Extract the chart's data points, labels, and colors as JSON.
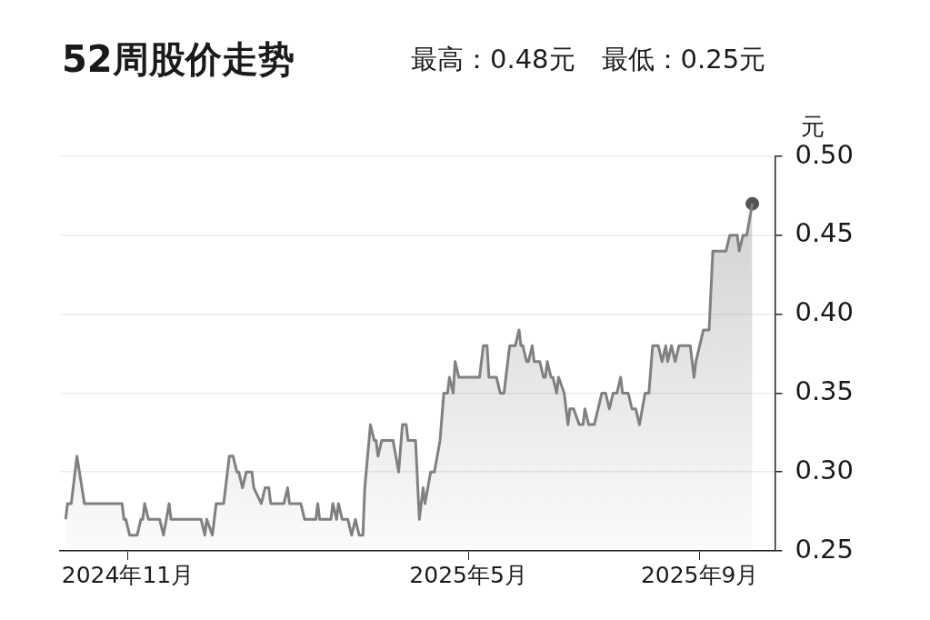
{
  "chart_data": {
    "type": "area",
    "title": "52周股价走势",
    "subtitle": "最高：0.48元　最低：0.25元",
    "ylabel": "元",
    "xlim": [
      "2024-09-26",
      "2025-10-11"
    ],
    "xticks": [
      {
        "value": "2024-11",
        "label": "2024年11月"
      },
      {
        "value": "2025-05",
        "label": "2025年5月"
      },
      {
        "value": "2025-09",
        "label": "2025年9月"
      }
    ],
    "ylim": [
      0.25,
      0.5
    ],
    "yticks": [
      {
        "value": 0.25,
        "label": "0.25"
      },
      {
        "value": 0.3,
        "label": "0.30"
      },
      {
        "value": 0.35,
        "label": "0.35"
      },
      {
        "value": 0.4,
        "label": "0.40"
      },
      {
        "value": 0.45,
        "label": "0.45"
      },
      {
        "value": 0.5,
        "label": "0.50"
      }
    ],
    "grid": "y",
    "series": [
      {
        "color": "#808080",
        "x": [
          "2024-09-29",
          "2024-09-30",
          "2024-10-02",
          "2024-10-05",
          "2024-10-09",
          "2024-10-29",
          "2024-10-30",
          "2024-10-31",
          "2024-11-02",
          "2024-11-06",
          "2024-11-08",
          "2024-11-09",
          "2024-11-10",
          "2024-11-12",
          "2024-11-18",
          "2024-11-20",
          "2024-11-23",
          "2024-11-24",
          "2024-12-10",
          "2024-12-12",
          "2024-12-13",
          "2024-12-16",
          "2024-12-18",
          "2024-12-22",
          "2024-12-25",
          "2024-12-27",
          "2024-12-29",
          "2024-12-30",
          "2025-01-01",
          "2025-01-03",
          "2025-01-06",
          "2025-01-07",
          "2025-01-11",
          "2025-01-13",
          "2025-01-15",
          "2025-01-16",
          "2025-01-23",
          "2025-01-25",
          "2025-01-26",
          "2025-02-01",
          "2025-02-03",
          "2025-02-09",
          "2025-02-10",
          "2025-02-11",
          "2025-02-17",
          "2025-02-18",
          "2025-02-20",
          "2025-02-21",
          "2025-02-23",
          "2025-02-26",
          "2025-02-28",
          "2025-03-02",
          "2025-03-04",
          "2025-03-06",
          "2025-03-07",
          "2025-03-10",
          "2025-03-12",
          "2025-03-13",
          "2025-03-14",
          "2025-03-16",
          "2025-03-22",
          "2025-03-25",
          "2025-03-27",
          "2025-03-29",
          "2025-03-30",
          "2025-04-03",
          "2025-04-05",
          "2025-04-07",
          "2025-04-08",
          "2025-04-11",
          "2025-04-13",
          "2025-04-16",
          "2025-04-18",
          "2025-04-20",
          "2025-04-21",
          "2025-04-23",
          "2025-04-24",
          "2025-04-26",
          "2025-05-07",
          "2025-05-09",
          "2025-05-11",
          "2025-05-12",
          "2025-05-16",
          "2025-05-18",
          "2025-05-20",
          "2025-05-21",
          "2025-05-23",
          "2025-05-26",
          "2025-05-28",
          "2025-05-29",
          "2025-05-30",
          "2025-06-01",
          "2025-06-02",
          "2025-06-04",
          "2025-06-05",
          "2025-06-08",
          "2025-06-10",
          "2025-06-11",
          "2025-06-12",
          "2025-06-14",
          "2025-06-15",
          "2025-06-17",
          "2025-06-18",
          "2025-06-21",
          "2025-06-23",
          "2025-06-24",
          "2025-06-26",
          "2025-06-29",
          "2025-07-01",
          "2025-07-02",
          "2025-07-04",
          "2025-07-07",
          "2025-07-11",
          "2025-07-13",
          "2025-07-15",
          "2025-07-17",
          "2025-07-19",
          "2025-07-21",
          "2025-07-22",
          "2025-07-25",
          "2025-07-27",
          "2025-07-29",
          "2025-07-31",
          "2025-08-03",
          "2025-08-05",
          "2025-08-07",
          "2025-08-10",
          "2025-08-12",
          "2025-08-14",
          "2025-08-15",
          "2025-08-17",
          "2025-08-19",
          "2025-08-21",
          "2025-08-27",
          "2025-08-29",
          "2025-08-30",
          "2025-09-03",
          "2025-09-06",
          "2025-09-08",
          "2025-09-15",
          "2025-09-17",
          "2025-09-21",
          "2025-09-22",
          "2025-09-24",
          "2025-09-26",
          "2025-09-29"
        ],
        "values": [
          0.27,
          0.28,
          0.28,
          0.31,
          0.28,
          0.28,
          0.27,
          0.27,
          0.26,
          0.26,
          0.27,
          0.27,
          0.28,
          0.27,
          0.27,
          0.26,
          0.28,
          0.27,
          0.27,
          0.26,
          0.27,
          0.26,
          0.28,
          0.28,
          0.31,
          0.31,
          0.3,
          0.3,
          0.29,
          0.3,
          0.3,
          0.29,
          0.28,
          0.29,
          0.29,
          0.28,
          0.28,
          0.29,
          0.28,
          0.28,
          0.27,
          0.27,
          0.28,
          0.27,
          0.27,
          0.28,
          0.27,
          0.28,
          0.27,
          0.27,
          0.26,
          0.27,
          0.26,
          0.26,
          0.29,
          0.33,
          0.32,
          0.32,
          0.31,
          0.32,
          0.32,
          0.3,
          0.33,
          0.33,
          0.32,
          0.32,
          0.27,
          0.29,
          0.28,
          0.3,
          0.3,
          0.32,
          0.35,
          0.35,
          0.36,
          0.35,
          0.37,
          0.36,
          0.36,
          0.38,
          0.38,
          0.36,
          0.36,
          0.35,
          0.35,
          0.36,
          0.38,
          0.38,
          0.39,
          0.38,
          0.38,
          0.37,
          0.37,
          0.38,
          0.37,
          0.37,
          0.36,
          0.36,
          0.37,
          0.36,
          0.36,
          0.35,
          0.36,
          0.35,
          0.33,
          0.34,
          0.34,
          0.33,
          0.33,
          0.34,
          0.33,
          0.33,
          0.35,
          0.35,
          0.34,
          0.35,
          0.35,
          0.36,
          0.35,
          0.35,
          0.34,
          0.34,
          0.33,
          0.35,
          0.35,
          0.38,
          0.38,
          0.37,
          0.38,
          0.37,
          0.38,
          0.37,
          0.38,
          0.38,
          0.36,
          0.37,
          0.39,
          0.39,
          0.44,
          0.44,
          0.45,
          0.45,
          0.44,
          0.45,
          0.45,
          0.47
        ]
      },
      {
        "type": "scatter",
        "color": "#555555",
        "x": [
          "2025-09-29"
        ],
        "values": [
          0.47
        ]
      }
    ]
  }
}
